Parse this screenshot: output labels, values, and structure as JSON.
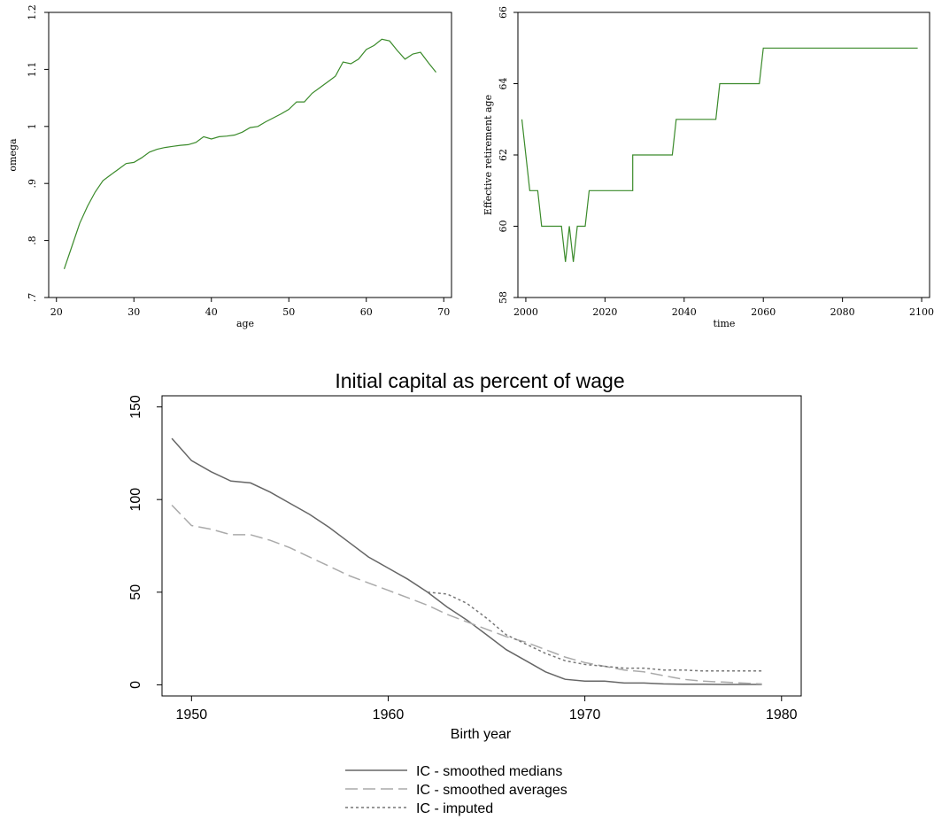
{
  "chart_data": [
    {
      "type": "line",
      "title": "",
      "xlabel": "age",
      "ylabel": "omega",
      "xlim": [
        19,
        71
      ],
      "ylim": [
        0.7,
        1.2
      ],
      "xticks": [
        20,
        30,
        40,
        50,
        60,
        70
      ],
      "xtick_labels": [
        "20",
        "30",
        "40",
        "50",
        "60",
        "70"
      ],
      "yticks": [
        0.7,
        0.8,
        0.9,
        1.0,
        1.1,
        1.2
      ],
      "ytick_labels": [
        ".7",
        ".8",
        ".9",
        "1",
        "1.1",
        "1.2"
      ],
      "color": "#3a8a2a",
      "series": [
        {
          "x": [
            21,
            22,
            23,
            24,
            25,
            26,
            27,
            28,
            29,
            30,
            31,
            32,
            33,
            34,
            35,
            36,
            37,
            38,
            39,
            40,
            41,
            42,
            43,
            44,
            45,
            46,
            47,
            48,
            49,
            50,
            51,
            52,
            53,
            54,
            55,
            56,
            57,
            58,
            59,
            60,
            61,
            62,
            63,
            64,
            65,
            66,
            67,
            68,
            69
          ],
          "values": [
            0.75,
            0.79,
            0.83,
            0.86,
            0.885,
            0.905,
            0.915,
            0.925,
            0.935,
            0.937,
            0.945,
            0.955,
            0.96,
            0.963,
            0.965,
            0.967,
            0.968,
            0.972,
            0.982,
            0.978,
            0.982,
            0.983,
            0.985,
            0.99,
            0.998,
            1.0,
            1.008,
            1.015,
            1.022,
            1.03,
            1.043,
            1.043,
            1.058,
            1.068,
            1.078,
            1.088,
            1.113,
            1.11,
            1.118,
            1.135,
            1.142,
            1.153,
            1.15,
            1.133,
            1.118,
            1.127,
            1.13,
            1.112,
            1.095
          ]
        }
      ]
    },
    {
      "type": "line",
      "title": "",
      "xlabel": "time",
      "ylabel": "Effective retirement age",
      "xlim": [
        1998,
        2102
      ],
      "ylim": [
        58,
        66
      ],
      "xticks": [
        2000,
        2020,
        2040,
        2060,
        2080,
        2100
      ],
      "xtick_labels": [
        "2000",
        "2020",
        "2040",
        "2060",
        "2080",
        "2100"
      ],
      "yticks": [
        58,
        60,
        62,
        64,
        66
      ],
      "ytick_labels": [
        "58",
        "60",
        "62",
        "64",
        "66"
      ],
      "color": "#3a8a2a",
      "series": [
        {
          "x": [
            1999,
            2001,
            2001,
            2003,
            2004,
            2009,
            2010,
            2011,
            2012,
            2013,
            2013,
            2015,
            2016,
            2027,
            2027,
            2037,
            2038,
            2048,
            2049,
            2059,
            2060,
            2099
          ],
          "values": [
            63,
            61,
            61,
            61,
            60,
            60,
            59,
            60,
            59,
            60,
            60,
            60,
            61,
            61,
            62,
            62,
            63,
            63,
            64,
            64,
            65,
            65
          ]
        }
      ]
    },
    {
      "type": "line",
      "title": "Initial capital as percent of wage",
      "xlabel": "Birth year",
      "ylabel": "",
      "xlim": [
        1948.5,
        1981
      ],
      "ylim": [
        -6,
        156
      ],
      "xticks": [
        1950,
        1960,
        1970,
        1980
      ],
      "xtick_labels": [
        "1950",
        "1960",
        "1970",
        "1980"
      ],
      "yticks": [
        0,
        50,
        100,
        150
      ],
      "ytick_labels": [
        "0",
        "50",
        "100",
        "150"
      ],
      "legend": "bottom",
      "series": [
        {
          "name": "IC - smoothed medians",
          "color": "#666666",
          "dash": "",
          "x": [
            1949,
            1950,
            1951,
            1952,
            1953,
            1954,
            1955,
            1956,
            1957,
            1958,
            1959,
            1960,
            1961,
            1962,
            1963,
            1964,
            1965,
            1966,
            1967,
            1968,
            1969,
            1970,
            1971,
            1972,
            1973,
            1974,
            1975,
            1976,
            1977,
            1978,
            1979
          ],
          "values": [
            133,
            121,
            115,
            110,
            109,
            104,
            98,
            92,
            85,
            77,
            69,
            63,
            57,
            50,
            42,
            35,
            27,
            19,
            13,
            7,
            3,
            2,
            2,
            1,
            1,
            0.5,
            0.3,
            0.3,
            0.2,
            0.2,
            0.2
          ]
        },
        {
          "name": "IC - smoothed averages",
          "color": "#aaaaaa",
          "dash": "14,6",
          "x": [
            1949,
            1950,
            1951,
            1952,
            1953,
            1954,
            1955,
            1956,
            1957,
            1958,
            1959,
            1960,
            1961,
            1962,
            1963,
            1964,
            1965,
            1966,
            1967,
            1968,
            1969,
            1970,
            1971,
            1972,
            1973,
            1974,
            1975,
            1976,
            1977,
            1978,
            1979
          ],
          "values": [
            97,
            86,
            84,
            81,
            81,
            78,
            74,
            69,
            64,
            59,
            55,
            51,
            47,
            43,
            38,
            34,
            30,
            26,
            23,
            19,
            15,
            12,
            10,
            8,
            7,
            5,
            3,
            2,
            1.5,
            1,
            0.5
          ]
        },
        {
          "name": "IC - imputed",
          "color": "#777777",
          "dash": "3,3",
          "x": [
            1962,
            1963,
            1964,
            1965,
            1966,
            1967,
            1968,
            1969,
            1970,
            1971,
            1972,
            1973,
            1974,
            1975,
            1976,
            1977,
            1978,
            1979
          ],
          "values": [
            50,
            49,
            44,
            36,
            27,
            22,
            17,
            13,
            11,
            10,
            9,
            9,
            8,
            8,
            7.5,
            7.5,
            7.5,
            7.5
          ]
        }
      ]
    }
  ]
}
